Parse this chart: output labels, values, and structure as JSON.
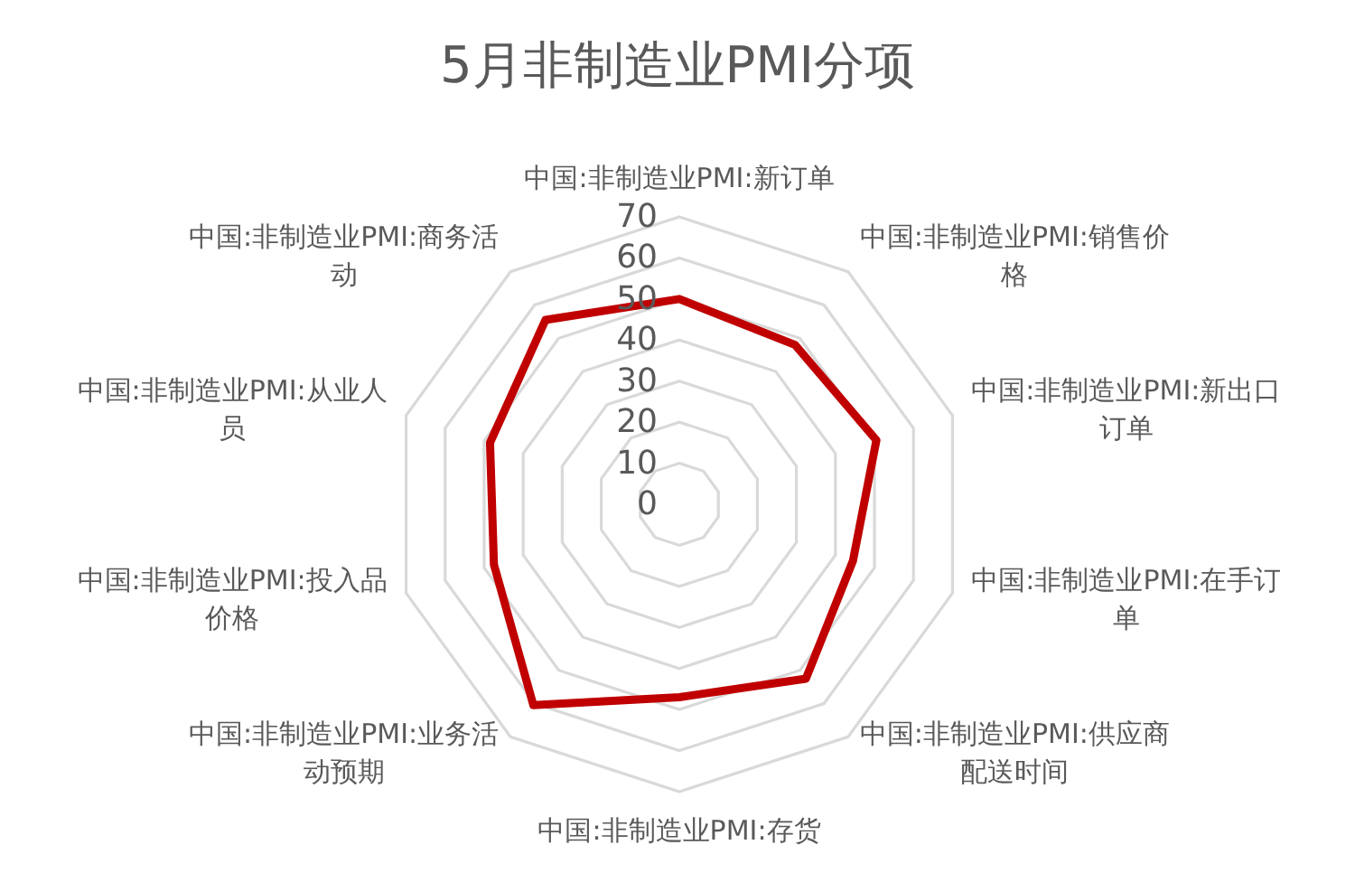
{
  "chart_data": {
    "type": "radar",
    "title": "5月非制造业PMI分项",
    "categories": [
      "中国:非制造业PMI:新订单",
      "中国:非制造业PMI:销售价格",
      "中国:非制造业PMI:新出口订单",
      "中国:非制造业PMI:在手订单",
      "中国:非制造业PMI:供应商配送时间",
      "中国:非制造业PMI:存货",
      "中国:非制造业PMI:业务活动预期",
      "中国:非制造业PMI:投入品价格",
      "中国:非制造业PMI:从业人员",
      "中国:非制造业PMI:商务活动"
    ],
    "series": [
      {
        "color": "#c00000",
        "values": [
          50,
          48,
          50.5,
          44.5,
          52.5,
          47,
          60.5,
          47.5,
          48.5,
          55.5
        ]
      }
    ],
    "ylim": [
      0,
      70
    ],
    "yticks": [
      0,
      10,
      20,
      30,
      40,
      50,
      60,
      70
    ],
    "grid": true
  }
}
